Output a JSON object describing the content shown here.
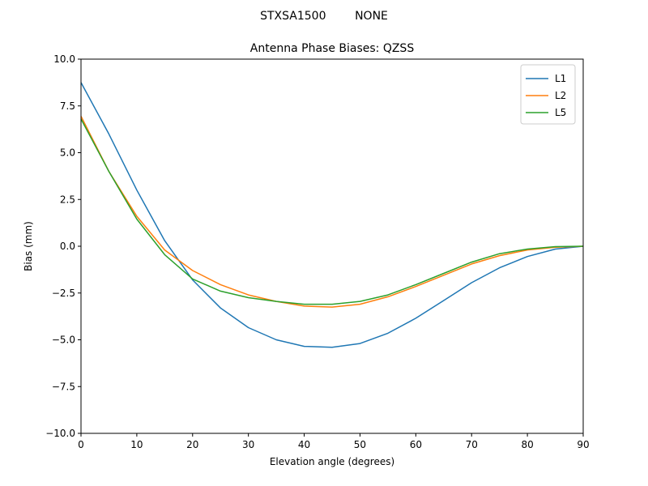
{
  "chart_data": {
    "type": "line",
    "suptitle": "STXSA1500        NONE",
    "title": "Antenna Phase Biases: QZSS",
    "xlabel": "Elevation angle (degrees)",
    "ylabel": "Bias (mm)",
    "xlim": [
      0,
      90
    ],
    "ylim": [
      -10,
      10
    ],
    "xticks": [
      0,
      10,
      20,
      30,
      40,
      50,
      60,
      70,
      80,
      90
    ],
    "yticks": [
      -10.0,
      -7.5,
      -5.0,
      -2.5,
      0.0,
      2.5,
      5.0,
      7.5,
      10.0
    ],
    "xtick_labels": [
      "0",
      "10",
      "20",
      "30",
      "40",
      "50",
      "60",
      "70",
      "80",
      "90"
    ],
    "ytick_labels": [
      "−10.0",
      "−7.5",
      "−5.0",
      "−2.5",
      "0.0",
      "2.5",
      "5.0",
      "7.5",
      "10.0"
    ],
    "grid": false,
    "legend_position": "top-right",
    "x": [
      0,
      5,
      10,
      15,
      20,
      25,
      30,
      35,
      40,
      45,
      50,
      55,
      60,
      65,
      70,
      75,
      80,
      85,
      90
    ],
    "series": [
      {
        "name": "L1",
        "color": "#1f77b4",
        "values": [
          8.75,
          6.0,
          3.0,
          0.3,
          -1.8,
          -3.3,
          -4.35,
          -5.0,
          -5.35,
          -5.4,
          -5.2,
          -4.65,
          -3.85,
          -2.9,
          -1.95,
          -1.15,
          -0.55,
          -0.15,
          0.0
        ]
      },
      {
        "name": "L2",
        "color": "#ff7f0e",
        "values": [
          6.95,
          4.0,
          1.6,
          -0.2,
          -1.3,
          -2.05,
          -2.6,
          -2.95,
          -3.2,
          -3.25,
          -3.1,
          -2.7,
          -2.15,
          -1.55,
          -0.95,
          -0.5,
          -0.2,
          -0.05,
          0.0
        ]
      },
      {
        "name": "L5",
        "color": "#2ca02c",
        "values": [
          6.8,
          4.0,
          1.45,
          -0.45,
          -1.75,
          -2.4,
          -2.75,
          -2.95,
          -3.1,
          -3.1,
          -2.95,
          -2.6,
          -2.05,
          -1.45,
          -0.85,
          -0.4,
          -0.15,
          -0.02,
          0.0
        ]
      }
    ]
  }
}
